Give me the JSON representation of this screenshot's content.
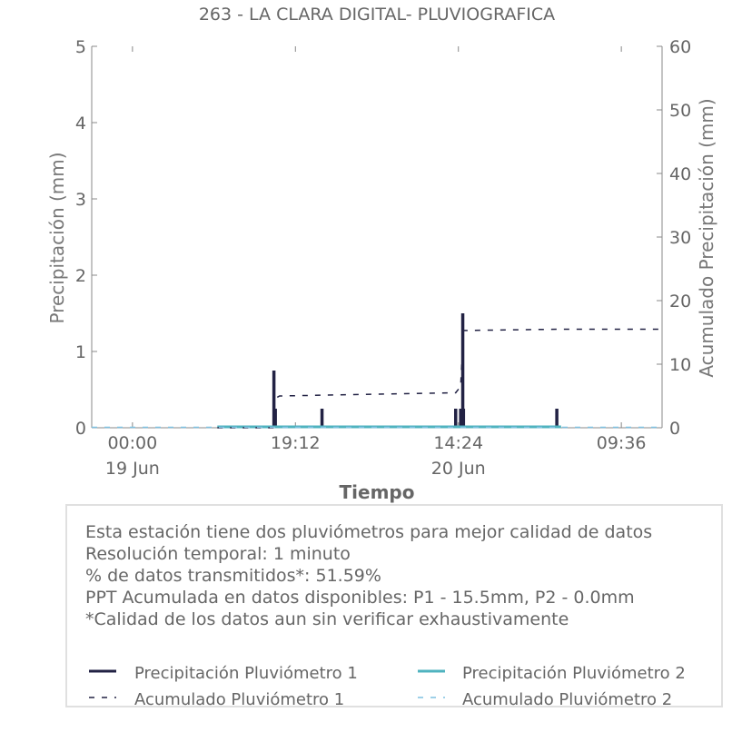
{
  "chart_data": {
    "type": "bar",
    "title": "263 - LA CLARA DIGITAL- PLUVIOGRAFICA",
    "xlabel": "Tiempo",
    "ylabel": "Precipitación (mm)",
    "y2label": "Acumulado Precipitación (mm)",
    "ylim": [
      0,
      5
    ],
    "y2lim": [
      0,
      60
    ],
    "yticks": [
      "0",
      "1",
      "2",
      "3",
      "4",
      "5"
    ],
    "y2ticks": [
      "0",
      "10",
      "20",
      "30",
      "40",
      "50",
      "60"
    ],
    "xlim": [
      "2019-06-18T19:12",
      "2019-06-21T14:24"
    ],
    "xticks": [
      {
        "t": "2019-06-19T00:00",
        "label": "00:00",
        "sublabel": "19 Jun"
      },
      {
        "t": "2019-06-19T19:12",
        "label": "19:12",
        "sublabel": ""
      },
      {
        "t": "2019-06-20T14:24",
        "label": "14:24",
        "sublabel": "20 Jun"
      },
      {
        "t": "2019-06-21T09:36",
        "label": "09:36",
        "sublabel": ""
      }
    ],
    "grid": false,
    "series": [
      {
        "name": "Precipitación Pluviómetro 1",
        "type": "bar",
        "color": "#222244",
        "points": [
          {
            "t": "2019-06-19T16:40",
            "v": 0.75
          },
          {
            "t": "2019-06-19T16:50",
            "v": 0.25
          },
          {
            "t": "2019-06-19T22:20",
            "v": 0.25
          },
          {
            "t": "2019-06-20T14:05",
            "v": 0.25
          },
          {
            "t": "2019-06-20T14:40",
            "v": 0.25
          },
          {
            "t": "2019-06-20T14:55",
            "v": 1.5
          },
          {
            "t": "2019-06-20T15:00",
            "v": 0.25
          },
          {
            "t": "2019-06-21T02:00",
            "v": 0.25
          }
        ]
      },
      {
        "name": "Precipitación Pluviómetro 2",
        "type": "line",
        "color": "#4fb3bf",
        "points": [
          {
            "t": "2019-06-19T10:00",
            "v": 0.0
          },
          {
            "t": "2019-06-21T02:30",
            "v": 0.0
          }
        ]
      },
      {
        "name": "Acumulado Pluviómetro 1",
        "type": "step",
        "axis": "y2",
        "color": "#222244",
        "points": [
          {
            "t": "2019-06-19T10:00",
            "v": 0.0
          },
          {
            "t": "2019-06-19T16:40",
            "v": 0.0
          },
          {
            "t": "2019-06-19T16:40",
            "v": 4.5
          },
          {
            "t": "2019-06-19T17:20",
            "v": 5.0
          },
          {
            "t": "2019-06-20T14:05",
            "v": 5.5
          },
          {
            "t": "2019-06-20T14:40",
            "v": 6.5
          },
          {
            "t": "2019-06-20T15:00",
            "v": 15.3
          },
          {
            "t": "2019-06-21T02:00",
            "v": 15.5
          },
          {
            "t": "2019-06-21T14:24",
            "v": 15.5
          }
        ]
      },
      {
        "name": "Acumulado Pluviómetro 2",
        "type": "line",
        "axis": "y2",
        "color": "#7ec0e0",
        "points": [
          {
            "t": "2019-06-18T19:12",
            "v": 0.0
          },
          {
            "t": "2019-06-21T14:24",
            "v": 0.0
          }
        ]
      }
    ],
    "legend": "bottom"
  },
  "info": {
    "lines": [
      "Esta estación tiene dos pluviómetros para mejor calidad de datos",
      "Resolución temporal: 1 minuto",
      "% de datos transmitidos*: 51.59%",
      "PPT Acumulada en datos disponibles: P1 - 15.5mm, P2 - 0.0mm",
      "*Calidad de los datos aun sin verificar exhaustivamente"
    ]
  }
}
